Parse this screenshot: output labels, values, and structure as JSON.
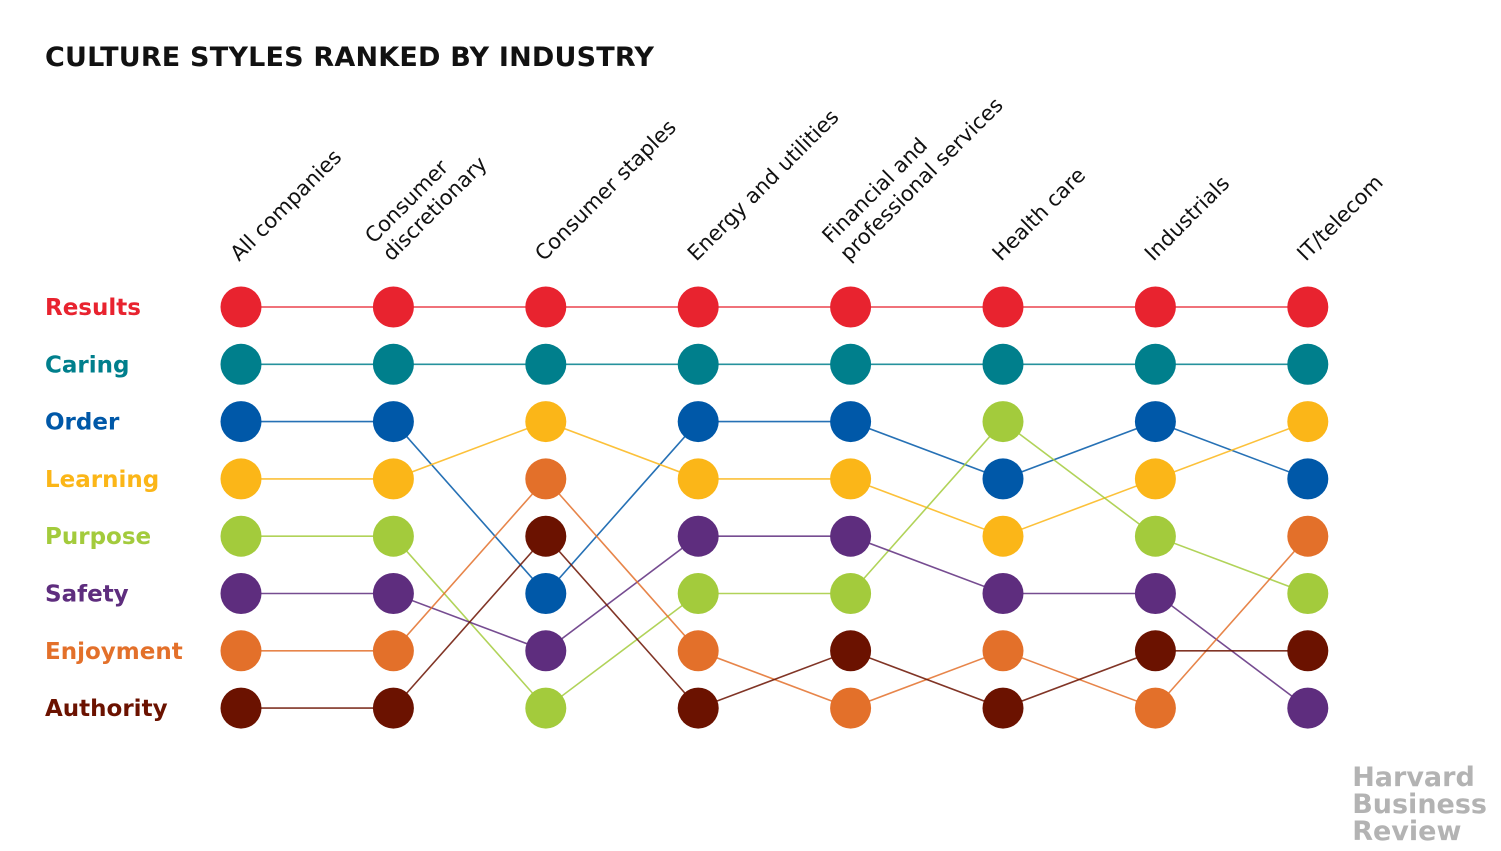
{
  "chart_data": {
    "type": "line",
    "title": "CULTURE STYLES RANKED BY INDUSTRY",
    "categories": [
      [
        "All companies"
      ],
      [
        "Consumer",
        "discretionary"
      ],
      [
        "Consumer staples"
      ],
      [
        "Energy and utilities"
      ],
      [
        "Financial and",
        "professional services"
      ],
      [
        "Health care"
      ],
      [
        "Industrials"
      ],
      [
        "IT/telecom"
      ]
    ],
    "series": [
      {
        "name": "Results",
        "color": "#e8232f",
        "ranks": [
          1,
          1,
          1,
          1,
          1,
          1,
          1,
          1
        ]
      },
      {
        "name": "Caring",
        "color": "#007f8c",
        "ranks": [
          2,
          2,
          2,
          2,
          2,
          2,
          2,
          2
        ]
      },
      {
        "name": "Order",
        "color": "#0058a8",
        "ranks": [
          3,
          3,
          6,
          3,
          3,
          4,
          3,
          4
        ]
      },
      {
        "name": "Learning",
        "color": "#fbb618",
        "ranks": [
          4,
          4,
          3,
          4,
          4,
          5,
          4,
          3
        ]
      },
      {
        "name": "Purpose",
        "color": "#a3cb3c",
        "ranks": [
          5,
          5,
          8,
          6,
          6,
          3,
          5,
          6
        ]
      },
      {
        "name": "Safety",
        "color": "#5e2d7e",
        "ranks": [
          6,
          6,
          7,
          5,
          5,
          6,
          6,
          8
        ]
      },
      {
        "name": "Enjoyment",
        "color": "#e3702a",
        "ranks": [
          7,
          7,
          4,
          7,
          8,
          7,
          8,
          5
        ]
      },
      {
        "name": "Authority",
        "color": "#6b1200",
        "ranks": [
          8,
          8,
          5,
          8,
          7,
          8,
          7,
          7
        ]
      }
    ],
    "y_axis": {
      "label": "",
      "range": [
        1,
        8
      ],
      "reversed": true,
      "note": "rank 1 at top"
    },
    "grid": false,
    "legend": "left"
  },
  "logo": {
    "lines": [
      "Harvard",
      "Business",
      "Review"
    ]
  }
}
